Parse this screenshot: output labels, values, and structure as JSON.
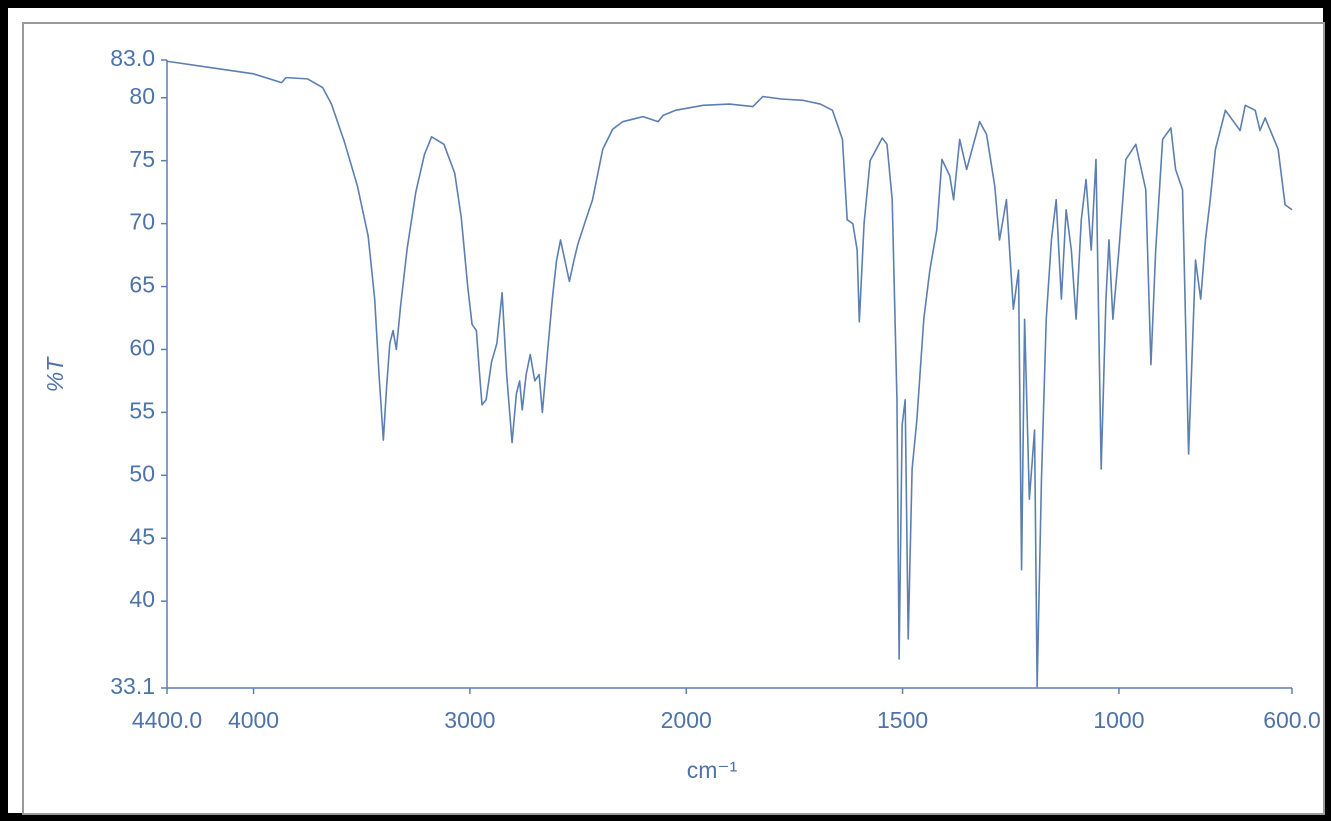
{
  "chart_data": {
    "type": "line",
    "xlabel": "cm⁻¹",
    "ylabel": "%T",
    "color": "#5b7fb0",
    "xlim": [
      4400,
      600
    ],
    "xscale_break": 2000,
    "ylim": [
      33.1,
      83.0
    ],
    "xticks": [
      {
        "value": 4400,
        "label": "4400.0"
      },
      4000,
      3000,
      2000,
      1500,
      1000,
      {
        "value": 600,
        "label": "600.0"
      }
    ],
    "yticks": [
      {
        "value": 33.1,
        "label": "33.1"
      },
      40,
      45,
      50,
      55,
      60,
      65,
      70,
      75,
      80,
      {
        "value": 83.0,
        "label": "83.0"
      }
    ],
    "x": [
      4400,
      4200,
      4000,
      3870,
      3850,
      3750,
      3680,
      3640,
      3580,
      3520,
      3470,
      3440,
      3420,
      3400,
      3385,
      3370,
      3355,
      3340,
      3320,
      3290,
      3250,
      3210,
      3177,
      3120,
      3070,
      3040,
      3010,
      2990,
      2970,
      2955,
      2944,
      2925,
      2900,
      2875,
      2851,
      2830,
      2805,
      2785,
      2770,
      2758,
      2740,
      2721,
      2700,
      2680,
      2665,
      2640,
      2619,
      2600,
      2581,
      2560,
      2540,
      2520,
      2502,
      2470,
      2433,
      2386,
      2340,
      2293,
      2200,
      2130,
      2107,
      2050,
      1961,
      1900,
      1846,
      1823,
      1780,
      1731,
      1690,
      1662,
      1639,
      1628,
      1615,
      1605,
      1600,
      1589,
      1575,
      1547,
      1536,
      1524,
      1513,
      1508,
      1501,
      1494,
      1487,
      1478,
      1467,
      1451,
      1437,
      1421,
      1409,
      1391,
      1382,
      1368,
      1352,
      1322,
      1306,
      1287,
      1276,
      1260,
      1244,
      1232,
      1225,
      1218,
      1207,
      1195,
      1189,
      1179,
      1168,
      1156,
      1145,
      1133,
      1122,
      1110,
      1099,
      1087,
      1076,
      1064,
      1053,
      1041,
      1030,
      1023,
      1014,
      1000,
      984,
      961,
      938,
      926,
      915,
      899,
      880,
      869,
      853,
      839,
      823,
      811,
      800,
      789,
      777,
      754,
      720,
      708,
      685,
      674,
      662,
      632,
      616,
      600
    ],
    "values": [
      82.9,
      82.4,
      81.9,
      81.2,
      81.6,
      81.5,
      80.8,
      79.5,
      76.5,
      73,
      69,
      64,
      58,
      52.8,
      57,
      60.5,
      61.5,
      60,
      63.5,
      68,
      72.5,
      75.5,
      76.9,
      76.3,
      74,
      70.5,
      65,
      62,
      61.5,
      58,
      55.6,
      56,
      59,
      60.5,
      64.5,
      58,
      52.6,
      56.5,
      57.5,
      55.2,
      58,
      59.6,
      57.5,
      58,
      55,
      60,
      64,
      67,
      68.7,
      67,
      65.4,
      67,
      68.3,
      70,
      71.9,
      75.9,
      77.5,
      78.1,
      78.5,
      78.1,
      78.6,
      79,
      79.4,
      79.5,
      79.3,
      80.1,
      79.9,
      79.8,
      79.5,
      79,
      76.7,
      70.3,
      70,
      67.9,
      62.2,
      70,
      75,
      76.8,
      76.3,
      71.9,
      56,
      35.4,
      54,
      56,
      37,
      50.5,
      54.4,
      62.4,
      66.3,
      69.5,
      75.1,
      73.8,
      71.9,
      76.7,
      74.3,
      78.1,
      77.1,
      73,
      68.7,
      71.9,
      63.2,
      66.3,
      42.5,
      62.4,
      48.1,
      53.6,
      33.2,
      49.7,
      62.4,
      68.7,
      71.9,
      64,
      71.1,
      67.9,
      62.4,
      70.3,
      73.5,
      67.9,
      75.1,
      50.5,
      64,
      68.7,
      62.4,
      67.9,
      75.1,
      76.3,
      72.7,
      58.8,
      67.9,
      76.7,
      77.6,
      74.3,
      72.7,
      51.7,
      67.1,
      64,
      68.7,
      71.9,
      75.9,
      79,
      77.4,
      79.4,
      79,
      77.4,
      78.4,
      75.9,
      71.5,
      71.1
    ]
  }
}
